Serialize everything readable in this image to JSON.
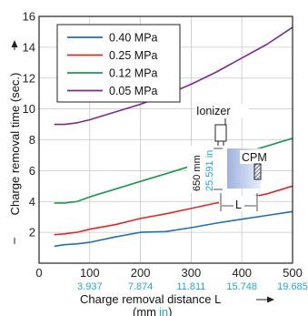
{
  "chart_data": {
    "type": "line",
    "ylabel": "Charge removal time (sec.)",
    "xlabel": "Charge removal distance L",
    "xlabel_units": "(mm",
    "xlabel_units_in": "in",
    "xlabel_units_close": ")",
    "xlim": [
      0,
      500
    ],
    "ylim": [
      0,
      16
    ],
    "x_ticks": [
      0,
      100,
      200,
      300,
      400,
      500
    ],
    "x_tick_labels": [
      "0",
      "100",
      "200",
      "300",
      "400",
      "500"
    ],
    "x_tick_labels_in": [
      "3.937",
      "7.874",
      "11.811",
      "15.748",
      "19.685"
    ],
    "y_ticks": [
      2,
      4,
      6,
      8,
      10,
      12,
      14,
      16
    ],
    "y_tick_labels": [
      "2",
      "4",
      "6",
      "8",
      "10",
      "12",
      "14",
      "16"
    ],
    "grid": true,
    "legend_position": "top-left",
    "series": [
      {
        "name": "0.40 MPa",
        "color": "#1f6fb4",
        "x": [
          30,
          50,
          75,
          100,
          150,
          200,
          250,
          300,
          350,
          400,
          450,
          500
        ],
        "y": [
          1.1,
          1.2,
          1.25,
          1.35,
          1.7,
          2.0,
          2.05,
          2.3,
          2.6,
          2.85,
          3.1,
          3.35
        ]
      },
      {
        "name": "0.25 MPa",
        "color": "#e02a2a",
        "x": [
          30,
          50,
          75,
          100,
          150,
          200,
          250,
          300,
          350,
          400,
          450,
          500
        ],
        "y": [
          1.85,
          1.9,
          2.0,
          2.2,
          2.5,
          2.9,
          3.2,
          3.55,
          3.9,
          4.15,
          4.5,
          5.0
        ]
      },
      {
        "name": "0.12 MPa",
        "color": "#1a9a4a",
        "x": [
          30,
          50,
          75,
          100,
          150,
          200,
          250,
          300,
          350,
          400,
          450,
          500
        ],
        "y": [
          3.9,
          3.9,
          4.0,
          4.3,
          4.8,
          5.3,
          5.8,
          6.3,
          6.8,
          7.1,
          7.6,
          8.1
        ]
      },
      {
        "name": "0.05 MPa",
        "color": "#7b2a8f",
        "x": [
          30,
          50,
          75,
          100,
          150,
          200,
          250,
          300,
          350,
          400,
          450,
          500
        ],
        "y": [
          9.0,
          9.0,
          9.1,
          9.3,
          9.8,
          10.3,
          10.9,
          11.6,
          12.4,
          13.3,
          14.2,
          15.3
        ]
      }
    ],
    "inset": {
      "ionizer_label": "Ionizer",
      "cpm_label": "CPM",
      "distance_label": "L",
      "height_mm": "650 mm",
      "height_in": "25.591 in"
    }
  }
}
